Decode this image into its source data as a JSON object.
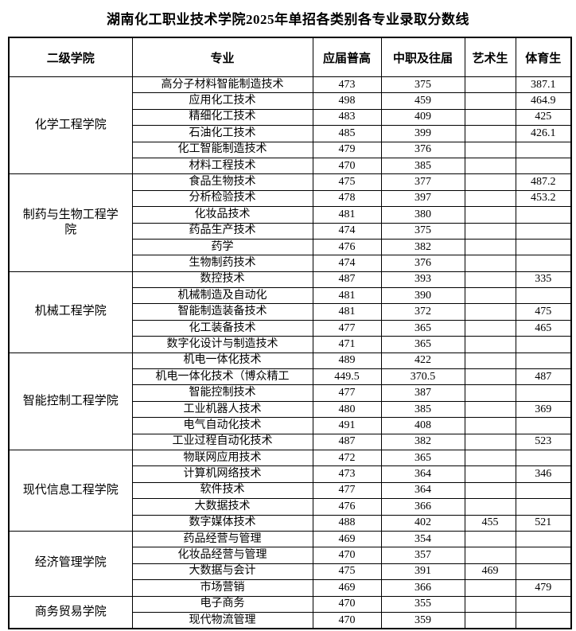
{
  "page": {
    "title": "湖南化工职业技术学院2025年单招各类别各专业录取分数线"
  },
  "table": {
    "headers": [
      "二级学院",
      "专业",
      "应届普高",
      "中职及往届",
      "艺术生",
      "体育生"
    ],
    "groups": [
      {
        "college": "化学工程学院",
        "rows": [
          {
            "major": "高分子材料智能制造技术",
            "regular": "473",
            "vocational": "375",
            "art": "",
            "sports": "387.1"
          },
          {
            "major": "应用化工技术",
            "regular": "498",
            "vocational": "459",
            "art": "",
            "sports": "464.9"
          },
          {
            "major": "精细化工技术",
            "regular": "483",
            "vocational": "409",
            "art": "",
            "sports": "425"
          },
          {
            "major": "石油化工技术",
            "regular": "485",
            "vocational": "399",
            "art": "",
            "sports": "426.1"
          },
          {
            "major": "化工智能制造技术",
            "regular": "479",
            "vocational": "376",
            "art": "",
            "sports": ""
          },
          {
            "major": "材料工程技术",
            "regular": "470",
            "vocational": "385",
            "art": "",
            "sports": ""
          }
        ]
      },
      {
        "college": "制药与生物工程学院",
        "rows": [
          {
            "major": "食品生物技术",
            "regular": "475",
            "vocational": "377",
            "art": "",
            "sports": "487.2"
          },
          {
            "major": "分析检验技术",
            "regular": "478",
            "vocational": "397",
            "art": "",
            "sports": "453.2"
          },
          {
            "major": "化妆品技术",
            "regular": "481",
            "vocational": "380",
            "art": "",
            "sports": ""
          },
          {
            "major": "药品生产技术",
            "regular": "474",
            "vocational": "375",
            "art": "",
            "sports": ""
          },
          {
            "major": "药学",
            "regular": "476",
            "vocational": "382",
            "art": "",
            "sports": ""
          },
          {
            "major": "生物制药技术",
            "regular": "474",
            "vocational": "376",
            "art": "",
            "sports": ""
          }
        ]
      },
      {
        "college": "机械工程学院",
        "rows": [
          {
            "major": "数控技术",
            "regular": "487",
            "vocational": "393",
            "art": "",
            "sports": "335"
          },
          {
            "major": "机械制造及自动化",
            "regular": "481",
            "vocational": "390",
            "art": "",
            "sports": ""
          },
          {
            "major": "智能制造装备技术",
            "regular": "481",
            "vocational": "372",
            "art": "",
            "sports": "475"
          },
          {
            "major": "化工装备技术",
            "regular": "477",
            "vocational": "365",
            "art": "",
            "sports": "465"
          },
          {
            "major": "数字化设计与制造技术",
            "regular": "471",
            "vocational": "365",
            "art": "",
            "sports": ""
          }
        ]
      },
      {
        "college": "智能控制工程学院",
        "rows": [
          {
            "major": "机电一体化技术",
            "regular": "489",
            "vocational": "422",
            "art": "",
            "sports": ""
          },
          {
            "major": "机电一体化技术（博众精工",
            "regular": "449.5",
            "vocational": "370.5",
            "art": "",
            "sports": "487"
          },
          {
            "major": "智能控制技术",
            "regular": "477",
            "vocational": "387",
            "art": "",
            "sports": ""
          },
          {
            "major": "工业机器人技术",
            "regular": "480",
            "vocational": "385",
            "art": "",
            "sports": "369"
          },
          {
            "major": "电气自动化技术",
            "regular": "491",
            "vocational": "408",
            "art": "",
            "sports": ""
          },
          {
            "major": "工业过程自动化技术",
            "regular": "487",
            "vocational": "382",
            "art": "",
            "sports": "523"
          }
        ]
      },
      {
        "college": "现代信息工程学院",
        "rows": [
          {
            "major": "物联网应用技术",
            "regular": "472",
            "vocational": "365",
            "art": "",
            "sports": ""
          },
          {
            "major": "计算机网络技术",
            "regular": "473",
            "vocational": "364",
            "art": "",
            "sports": "346"
          },
          {
            "major": "软件技术",
            "regular": "477",
            "vocational": "364",
            "art": "",
            "sports": ""
          },
          {
            "major": "大数据技术",
            "regular": "476",
            "vocational": "366",
            "art": "",
            "sports": ""
          },
          {
            "major": "数字媒体技术",
            "regular": "488",
            "vocational": "402",
            "art": "455",
            "sports": "521"
          }
        ]
      },
      {
        "college": "经济管理学院",
        "rows": [
          {
            "major": "药品经营与管理",
            "regular": "469",
            "vocational": "354",
            "art": "",
            "sports": ""
          },
          {
            "major": "化妆品经营与管理",
            "regular": "470",
            "vocational": "357",
            "art": "",
            "sports": ""
          },
          {
            "major": "大数据与会计",
            "regular": "475",
            "vocational": "391",
            "art": "469",
            "sports": ""
          },
          {
            "major": "市场营销",
            "regular": "469",
            "vocational": "366",
            "art": "",
            "sports": "479"
          }
        ]
      },
      {
        "college": "商务贸易学院",
        "rows": [
          {
            "major": "电子商务",
            "regular": "470",
            "vocational": "355",
            "art": "",
            "sports": ""
          },
          {
            "major": "现代物流管理",
            "regular": "470",
            "vocational": "359",
            "art": "",
            "sports": ""
          }
        ]
      }
    ]
  }
}
